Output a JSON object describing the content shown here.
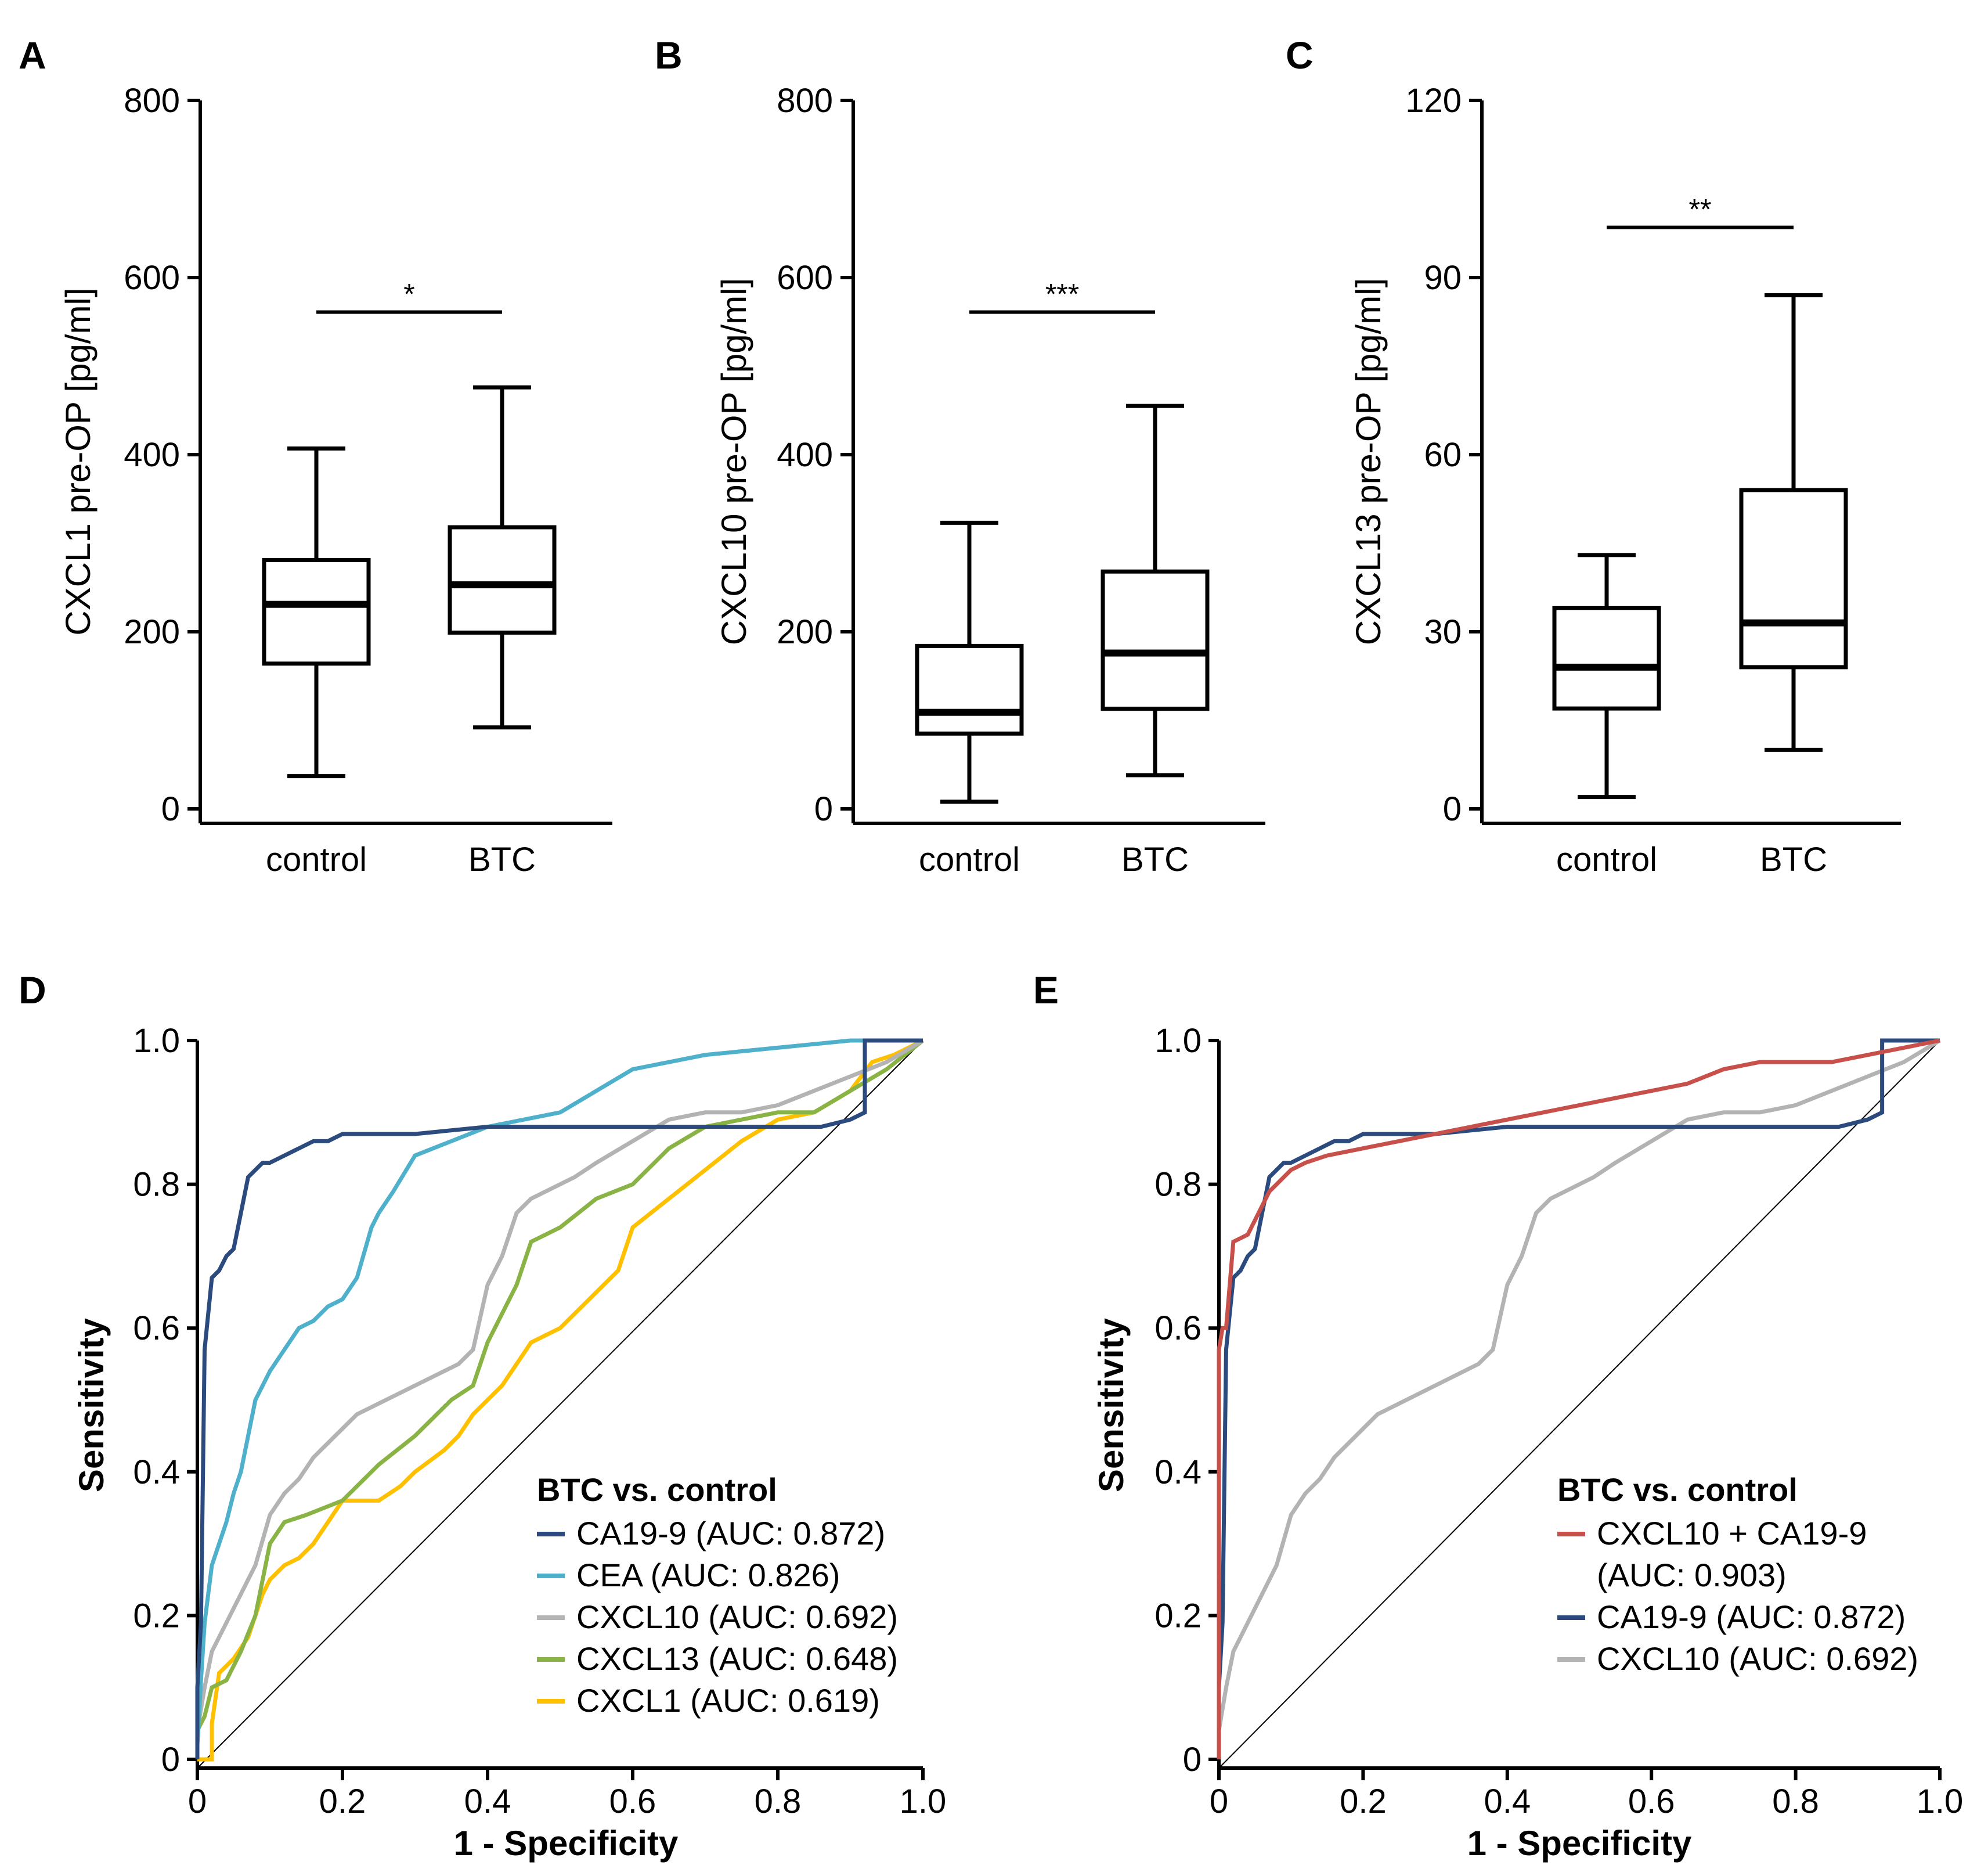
{
  "colors": {
    "CA19-9": "#2b4a7e",
    "CEA": "#4fb0cc",
    "CXCL10": "#b3b3b3",
    "CXCL13": "#8ab346",
    "CXCL1": "#ffc000",
    "CXCL10 + CA19-9": "#c8504b"
  },
  "chart_data": [
    {
      "panel": "A",
      "type": "box",
      "ylabel": "CXCL1 pre-OP [pg/ml]",
      "xlabel": "",
      "ylim": [
        0,
        800
      ],
      "yticks": [
        "0",
        "200",
        "400",
        "600",
        "800"
      ],
      "categories": [
        "control",
        "BTC"
      ],
      "boxes": [
        {
          "min": 37,
          "q1": 164,
          "median": 231,
          "q3": 281,
          "max": 407
        },
        {
          "min": 92,
          "q1": 199,
          "median": 253,
          "q3": 318,
          "max": 476
        }
      ],
      "significance": {
        "label": "*",
        "y": 561
      }
    },
    {
      "panel": "B",
      "type": "box",
      "ylabel": "CXCL10 pre-OP [pg/ml]",
      "xlabel": "",
      "ylim": [
        0,
        800
      ],
      "yticks": [
        "0",
        "200",
        "400",
        "600",
        "800"
      ],
      "categories": [
        "control",
        "BTC"
      ],
      "boxes": [
        {
          "min": 8,
          "q1": 85,
          "median": 109,
          "q3": 184,
          "max": 323
        },
        {
          "min": 38,
          "q1": 113,
          "median": 176,
          "q3": 268,
          "max": 455
        }
      ],
      "significance": {
        "label": "***",
        "y": 561
      }
    },
    {
      "panel": "C",
      "type": "box",
      "ylabel": "CXCL13 pre-OP [pg/ml]",
      "xlabel": "",
      "ylim": [
        0,
        120
      ],
      "yticks": [
        "0",
        "30",
        "60",
        "90",
        "120"
      ],
      "categories": [
        "control",
        "BTC"
      ],
      "boxes": [
        {
          "min": 2,
          "q1": 17,
          "median": 24,
          "q3": 34,
          "max": 43
        },
        {
          "min": 10,
          "q1": 24,
          "median": 31.5,
          "q3": 54,
          "max": 87
        }
      ],
      "significance": {
        "label": "**",
        "y": 98.5
      }
    },
    {
      "panel": "D",
      "type": "line",
      "xlabel": "1 - Specificity",
      "ylabel": "Sensitivity",
      "xlim": [
        0,
        1
      ],
      "ylim": [
        0,
        1
      ],
      "xticks": [
        "0",
        "0.2",
        "0.4",
        "0.6",
        "0.8",
        "1.0"
      ],
      "yticks": [
        "0",
        "0.2",
        "0.4",
        "0.6",
        "0.8",
        "1.0"
      ],
      "legend_title": "BTC vs. control",
      "legend_position": "bottom-right",
      "legend": [
        "CA19-9 (AUC: 0.872)",
        "CEA (AUC: 0.826)",
        "CXCL10 (AUC: 0.692)",
        "CXCL13 (AUC: 0.648)",
        "CXCL1 (AUC: 0.619)"
      ],
      "series": [
        {
          "name": "CA19-9",
          "x": [
            0,
            0,
            0.005,
            0.01,
            0.02,
            0.03,
            0.04,
            0.05,
            0.06,
            0.07,
            0.08,
            0.09,
            0.1,
            0.12,
            0.14,
            0.16,
            0.18,
            0.2,
            0.25,
            0.3,
            0.4,
            0.5,
            0.6,
            0.7,
            0.8,
            0.86,
            0.9,
            0.92,
            0.92,
            0.95,
            1
          ],
          "y": [
            0,
            0.1,
            0.19,
            0.57,
            0.67,
            0.68,
            0.7,
            0.71,
            0.76,
            0.81,
            0.82,
            0.83,
            0.83,
            0.84,
            0.85,
            0.86,
            0.86,
            0.87,
            0.87,
            0.87,
            0.88,
            0.88,
            0.88,
            0.88,
            0.88,
            0.88,
            0.89,
            0.9,
            1,
            1,
            1
          ]
        },
        {
          "name": "CEA",
          "x": [
            0,
            0,
            0.005,
            0.01,
            0.02,
            0.03,
            0.04,
            0.05,
            0.06,
            0.08,
            0.1,
            0.12,
            0.14,
            0.16,
            0.18,
            0.2,
            0.22,
            0.24,
            0.25,
            0.27,
            0.3,
            0.35,
            0.4,
            0.45,
            0.5,
            0.55,
            0.6,
            0.65,
            0.7,
            0.8,
            0.9,
            1
          ],
          "y": [
            0,
            0.02,
            0.11,
            0.19,
            0.27,
            0.3,
            0.33,
            0.37,
            0.4,
            0.5,
            0.54,
            0.57,
            0.6,
            0.61,
            0.63,
            0.64,
            0.67,
            0.74,
            0.76,
            0.79,
            0.84,
            0.86,
            0.88,
            0.89,
            0.9,
            0.93,
            0.96,
            0.97,
            0.98,
            0.99,
            1,
            1
          ]
        },
        {
          "name": "CXCL10",
          "x": [
            0,
            0,
            0.01,
            0.02,
            0.04,
            0.06,
            0.08,
            0.1,
            0.12,
            0.14,
            0.16,
            0.18,
            0.2,
            0.22,
            0.24,
            0.26,
            0.28,
            0.3,
            0.32,
            0.34,
            0.36,
            0.38,
            0.4,
            0.42,
            0.44,
            0.46,
            0.48,
            0.5,
            0.52,
            0.55,
            0.6,
            0.65,
            0.7,
            0.75,
            0.8,
            0.85,
            0.9,
            0.95,
            1
          ],
          "y": [
            0,
            0.04,
            0.1,
            0.15,
            0.19,
            0.23,
            0.27,
            0.34,
            0.37,
            0.39,
            0.42,
            0.44,
            0.46,
            0.48,
            0.49,
            0.5,
            0.51,
            0.52,
            0.53,
            0.54,
            0.55,
            0.57,
            0.66,
            0.7,
            0.76,
            0.78,
            0.79,
            0.8,
            0.81,
            0.83,
            0.86,
            0.89,
            0.9,
            0.9,
            0.91,
            0.93,
            0.95,
            0.97,
            1
          ]
        },
        {
          "name": "CXCL13",
          "x": [
            0,
            0,
            0.01,
            0.02,
            0.04,
            0.06,
            0.08,
            0.1,
            0.12,
            0.15,
            0.2,
            0.25,
            0.3,
            0.35,
            0.38,
            0.4,
            0.42,
            0.44,
            0.46,
            0.5,
            0.55,
            0.6,
            0.65,
            0.7,
            0.75,
            0.8,
            0.85,
            0.9,
            0.95,
            1
          ],
          "y": [
            0,
            0.04,
            0.06,
            0.1,
            0.11,
            0.15,
            0.2,
            0.3,
            0.33,
            0.34,
            0.36,
            0.41,
            0.45,
            0.5,
            0.52,
            0.58,
            0.62,
            0.66,
            0.72,
            0.74,
            0.78,
            0.8,
            0.85,
            0.88,
            0.89,
            0.9,
            0.9,
            0.93,
            0.96,
            1
          ]
        },
        {
          "name": "CXCL1",
          "x": [
            0,
            0.02,
            0.02,
            0.03,
            0.05,
            0.07,
            0.08,
            0.09,
            0.1,
            0.12,
            0.14,
            0.16,
            0.2,
            0.25,
            0.28,
            0.3,
            0.34,
            0.36,
            0.38,
            0.4,
            0.42,
            0.44,
            0.46,
            0.5,
            0.54,
            0.58,
            0.6,
            0.65,
            0.7,
            0.75,
            0.8,
            0.85,
            0.9,
            0.93,
            0.96,
            1
          ],
          "y": [
            0,
            0,
            0.05,
            0.12,
            0.14,
            0.17,
            0.2,
            0.23,
            0.25,
            0.27,
            0.28,
            0.3,
            0.36,
            0.36,
            0.38,
            0.4,
            0.43,
            0.45,
            0.48,
            0.5,
            0.52,
            0.55,
            0.58,
            0.6,
            0.64,
            0.68,
            0.74,
            0.78,
            0.82,
            0.86,
            0.89,
            0.9,
            0.93,
            0.97,
            0.98,
            1
          ]
        }
      ]
    },
    {
      "panel": "E",
      "type": "line",
      "xlabel": "1 - Specificity",
      "ylabel": "Sensitivity",
      "xlim": [
        0,
        1
      ],
      "ylim": [
        0,
        1
      ],
      "xticks": [
        "0",
        "0.2",
        "0.4",
        "0.6",
        "0.8",
        "1.0"
      ],
      "yticks": [
        "0",
        "0.2",
        "0.4",
        "0.6",
        "0.8",
        "1.0"
      ],
      "legend_title": "BTC vs. control",
      "legend_position": "bottom-right",
      "legend": [
        "CXCL10 + CA19-9",
        "(AUC: 0.903)",
        "CA19-9 (AUC: 0.872)",
        "CXCL10 (AUC: 0.692)"
      ],
      "series": [
        {
          "name": "CXCL10 + CA19-9",
          "x": [
            0,
            0,
            0.005,
            0.01,
            0.02,
            0.04,
            0.05,
            0.06,
            0.07,
            0.08,
            0.1,
            0.12,
            0.15,
            0.2,
            0.25,
            0.3,
            0.35,
            0.4,
            0.45,
            0.5,
            0.55,
            0.6,
            0.65,
            0.7,
            0.75,
            0.8,
            0.85,
            0.9,
            0.95,
            1
          ],
          "y": [
            0,
            0.57,
            0.6,
            0.6,
            0.72,
            0.73,
            0.75,
            0.77,
            0.79,
            0.8,
            0.82,
            0.83,
            0.84,
            0.85,
            0.86,
            0.87,
            0.88,
            0.89,
            0.9,
            0.91,
            0.92,
            0.93,
            0.94,
            0.96,
            0.97,
            0.97,
            0.97,
            0.98,
            0.99,
            1
          ]
        },
        {
          "name": "CA19-9",
          "x": [
            0,
            0,
            0.005,
            0.01,
            0.02,
            0.03,
            0.04,
            0.05,
            0.06,
            0.07,
            0.08,
            0.09,
            0.1,
            0.12,
            0.14,
            0.16,
            0.18,
            0.2,
            0.25,
            0.3,
            0.4,
            0.5,
            0.6,
            0.7,
            0.8,
            0.86,
            0.9,
            0.92,
            0.92,
            0.95,
            1
          ],
          "y": [
            0,
            0.1,
            0.19,
            0.57,
            0.67,
            0.68,
            0.7,
            0.71,
            0.76,
            0.81,
            0.82,
            0.83,
            0.83,
            0.84,
            0.85,
            0.86,
            0.86,
            0.87,
            0.87,
            0.87,
            0.88,
            0.88,
            0.88,
            0.88,
            0.88,
            0.88,
            0.89,
            0.9,
            1,
            1,
            1
          ]
        },
        {
          "name": "CXCL10",
          "x": [
            0,
            0,
            0.01,
            0.02,
            0.04,
            0.06,
            0.08,
            0.1,
            0.12,
            0.14,
            0.16,
            0.18,
            0.2,
            0.22,
            0.24,
            0.26,
            0.28,
            0.3,
            0.32,
            0.34,
            0.36,
            0.38,
            0.4,
            0.42,
            0.44,
            0.46,
            0.48,
            0.5,
            0.52,
            0.55,
            0.6,
            0.65,
            0.7,
            0.75,
            0.8,
            0.85,
            0.9,
            0.95,
            1
          ],
          "y": [
            0,
            0.04,
            0.1,
            0.15,
            0.19,
            0.23,
            0.27,
            0.34,
            0.37,
            0.39,
            0.42,
            0.44,
            0.46,
            0.48,
            0.49,
            0.5,
            0.51,
            0.52,
            0.53,
            0.54,
            0.55,
            0.57,
            0.66,
            0.7,
            0.76,
            0.78,
            0.79,
            0.8,
            0.81,
            0.83,
            0.86,
            0.89,
            0.9,
            0.9,
            0.91,
            0.93,
            0.95,
            0.97,
            1
          ]
        }
      ]
    }
  ]
}
